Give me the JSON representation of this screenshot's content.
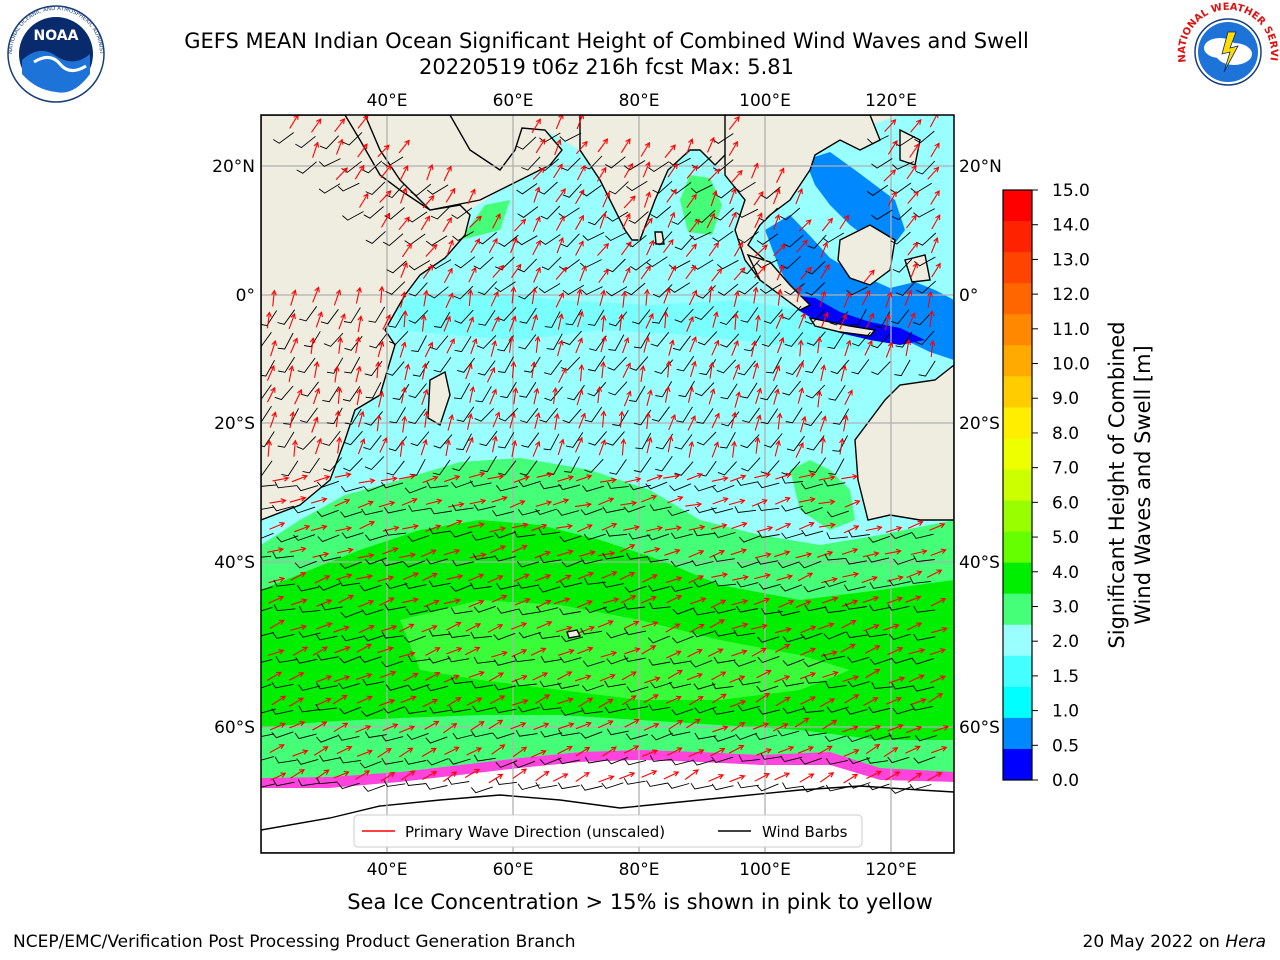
{
  "header": {
    "title_line1": "GEFS MEAN Indian Ocean Significant Height of Combined Wind Waves and Swell",
    "title_line2": "20220519 t06z 216h fcst   Max: 5.81"
  },
  "logos": {
    "left": {
      "name": "NOAA",
      "ring_text": "NATIONAL OCEANIC AND ATMOSPHERIC ADMINISTRATION · U.S. DEPARTMENT OF COMMERCE"
    },
    "right": {
      "name": "NATIONAL WEATHER SERVICE"
    }
  },
  "map": {
    "top_lon_labels": [
      "40°E",
      "60°E",
      "80°E",
      "100°E",
      "120°E"
    ],
    "bottom_lon_labels": [
      "40°E",
      "60°E",
      "80°E",
      "100°E",
      "120°E"
    ],
    "left_lat_labels": [
      "20°N",
      "0°",
      "20°S",
      "40°S",
      "60°S"
    ],
    "right_lat_labels": [
      "20°N",
      "0°",
      "20°S",
      "40°S",
      "60°S"
    ],
    "legend": {
      "wave_label": "Primary Wave Direction (unscaled)",
      "wind_label": "Wind Barbs",
      "wave_color": "#ff0000",
      "wind_color": "#000000"
    }
  },
  "colorbar": {
    "tick_labels": [
      "15.0",
      "14.0",
      "13.0",
      "12.0",
      "11.0",
      "10.0",
      "9.0",
      "8.0",
      "7.0",
      "6.0",
      "5.0",
      "4.0",
      "3.0",
      "2.0",
      "1.5",
      "1.0",
      "0.5",
      "0.0"
    ],
    "label_line1": "Significant Height of Combined",
    "label_line2": "Wind Waves and Swell [m]",
    "colors": [
      "#ff0000",
      "#ff2200",
      "#ff4400",
      "#ff6600",
      "#ff8800",
      "#ffaa00",
      "#ffcc00",
      "#ffee00",
      "#eeff00",
      "#ccff00",
      "#99ff00",
      "#66ff00",
      "#00ee00",
      "#44ff77",
      "#99ffff",
      "#44ffff",
      "#00ffff",
      "#0088ff",
      "#0000ff"
    ]
  },
  "caption": "Sea Ice Concentration > 15% is shown in pink to yellow",
  "footer": {
    "left": "NCEP/EMC/Verification Post Processing Product Generation Branch",
    "right_date": "20 May 2022 on ",
    "right_machine": "Hera"
  }
}
